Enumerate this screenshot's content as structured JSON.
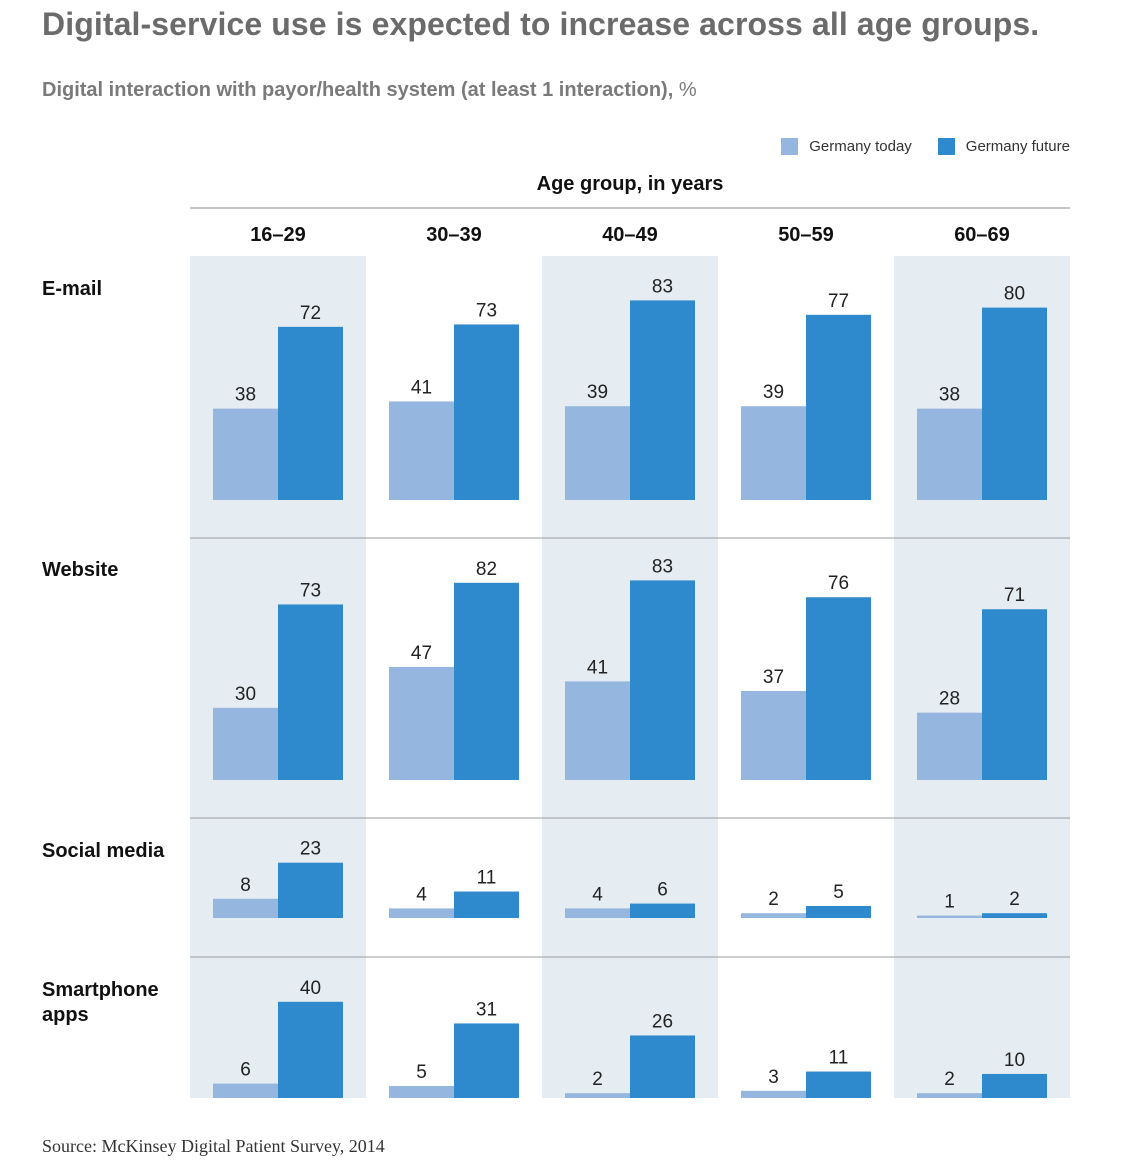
{
  "title": "Digital-service use is expected to increase across all age groups.",
  "subtitle": "Digital interaction with payor/health system (at least 1 interaction),",
  "subtitle_unit": "%",
  "source": "Source: McKinsey Digital Patient Survey, 2014",
  "colors": {
    "today": "#95b7df",
    "future": "#2e8acd",
    "band": "#e5edf2",
    "rule": "#9a9a9a"
  },
  "chart_data": {
    "type": "bar",
    "column_axis_label": "Age group, in years",
    "categories": [
      "16–29",
      "30–39",
      "40–49",
      "50–59",
      "60–69"
    ],
    "series": [
      {
        "name": "Germany today",
        "key": "today"
      },
      {
        "name": "Germany future",
        "key": "future"
      }
    ],
    "rows": [
      {
        "label": "E-mail",
        "today": [
          38,
          41,
          39,
          39,
          38
        ],
        "future": [
          72,
          73,
          83,
          77,
          80
        ]
      },
      {
        "label": "Website",
        "today": [
          30,
          47,
          41,
          37,
          28
        ],
        "future": [
          73,
          82,
          83,
          76,
          71
        ]
      },
      {
        "label": "Social media",
        "today": [
          8,
          4,
          4,
          2,
          1
        ],
        "future": [
          23,
          11,
          6,
          5,
          2
        ]
      },
      {
        "label": "Smartphone apps",
        "today": [
          6,
          5,
          2,
          3,
          2
        ],
        "future": [
          40,
          31,
          26,
          11,
          10
        ]
      }
    ],
    "legend_position": "top-right",
    "grid": false
  }
}
